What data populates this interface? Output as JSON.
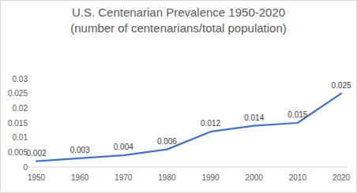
{
  "chart_data": {
    "type": "line",
    "title": [
      "U.S. Centenarian Prevalence 1950-2020",
      "(number of centenarians/total population)"
    ],
    "categories": [
      "1950",
      "1960",
      "1970",
      "1980",
      "1990",
      "2000",
      "2010",
      "2020"
    ],
    "values": [
      0.002,
      0.003,
      0.004,
      0.006,
      0.012,
      0.014,
      0.015,
      0.025
    ],
    "color": "#4472c4",
    "ylim": [
      0,
      0.03
    ],
    "yticks": [
      0,
      0.005,
      0.01,
      0.015,
      0.02,
      0.025,
      0.03
    ],
    "grid": false,
    "data_labels": true
  }
}
